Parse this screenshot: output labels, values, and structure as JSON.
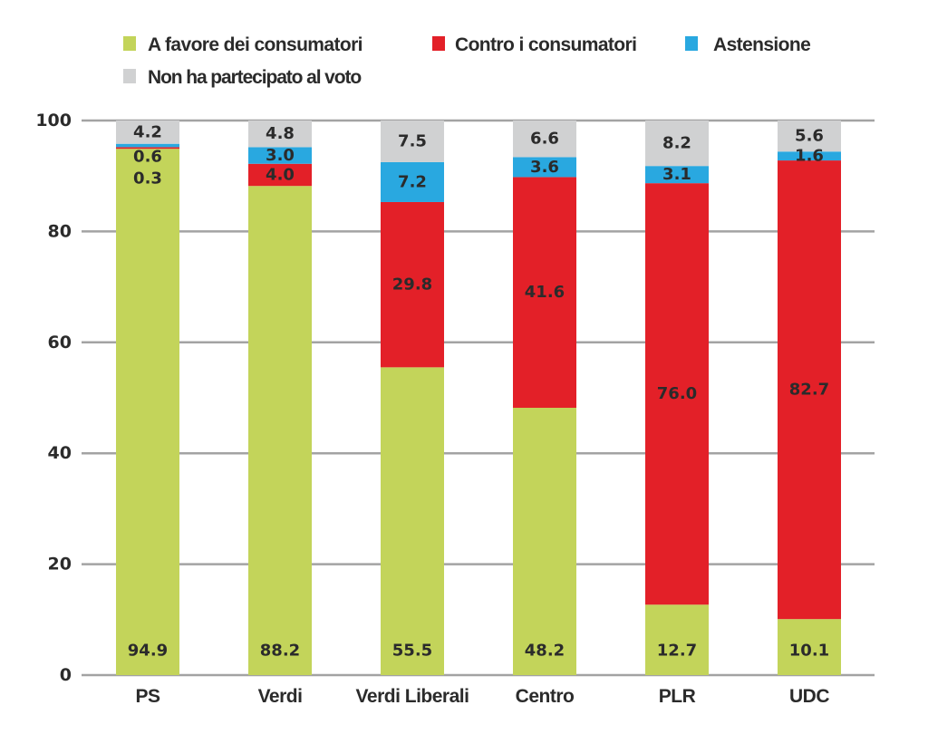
{
  "chart_data": {
    "type": "bar",
    "stacked": true,
    "title": "",
    "xlabel": "",
    "ylabel": "",
    "ylim": [
      0,
      100
    ],
    "yticks": [
      0,
      20,
      40,
      60,
      80,
      100
    ],
    "grid": true,
    "legend_position": "top-left",
    "categories": [
      "PS",
      "Verdi",
      "Verdi Liberali",
      "Centro",
      "PLR",
      "UDC"
    ],
    "series": [
      {
        "name": "A favore dei consumatori",
        "color": "#c3d45a",
        "values": [
          94.9,
          88.2,
          55.5,
          48.2,
          12.7,
          10.1
        ]
      },
      {
        "name": "Contro i consumatori",
        "color": "#e32028",
        "values": [
          0.3,
          4.0,
          29.8,
          41.6,
          76.0,
          82.7
        ]
      },
      {
        "name": "Astensione",
        "color": "#29a8e0",
        "values": [
          0.6,
          3.0,
          7.2,
          3.6,
          3.1,
          1.6
        ]
      },
      {
        "name": "Non ha partecipato al voto",
        "color": "#d0d1d2",
        "values": [
          4.2,
          4.8,
          7.5,
          6.6,
          8.2,
          5.6
        ]
      }
    ],
    "value_labels": [
      [
        "94.9",
        "88.2",
        "55.5",
        "48.2",
        "12.7",
        "10.1"
      ],
      [
        "0.3",
        "4.0",
        "29.8",
        "41.6",
        "76.0",
        "82.7"
      ],
      [
        "0.6",
        "3.0",
        "7.2",
        "3.6",
        "3.1",
        "1.6"
      ],
      [
        "4.2",
        "4.8",
        "7.5",
        "6.6",
        "8.2",
        "5.6"
      ]
    ],
    "ytick_labels": [
      "0",
      "20",
      "40",
      "60",
      "80",
      "100"
    ]
  }
}
